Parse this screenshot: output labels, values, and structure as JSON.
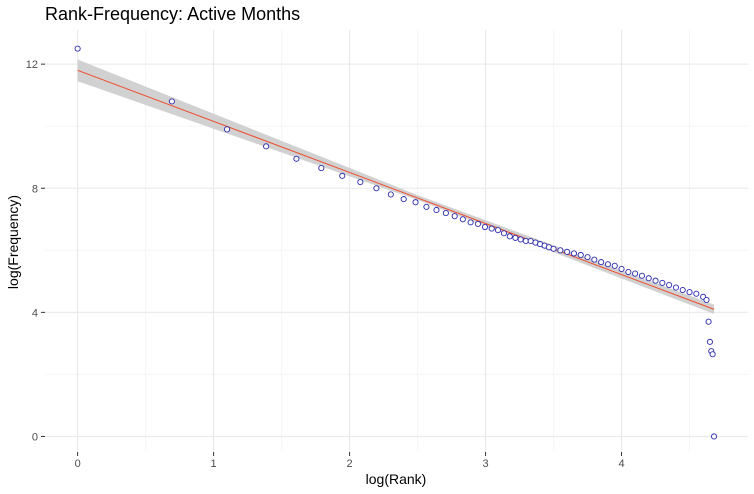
{
  "chart_data": {
    "type": "scatter",
    "title": "Rank-Frequency: Active Months",
    "xlabel": "log(Rank)",
    "ylabel": "log(Frequency)",
    "xlim": [
      -0.24,
      4.93
    ],
    "ylim": [
      -0.5,
      13.1
    ],
    "x_ticks": [
      0,
      1,
      2,
      3,
      4
    ],
    "y_ticks": [
      0,
      4,
      8,
      12
    ],
    "grid": true,
    "legend": "none",
    "colors": {
      "points": "#2b2bb0",
      "fit_line": "#ee4b2b",
      "confidence_band": "#cccccc",
      "grid_major": "#ebebeb",
      "grid_minor": "#f5f5f5"
    },
    "series": [
      {
        "kind": "points",
        "x": [
          0,
          0.693,
          1.099,
          1.386,
          1.609,
          1.792,
          1.946,
          2.079,
          2.197,
          2.303,
          2.398,
          2.485,
          2.565,
          2.639,
          2.708,
          2.773,
          2.833,
          2.89,
          2.944,
          2.996,
          3.045,
          3.091,
          3.135,
          3.178,
          3.219,
          3.258,
          3.296,
          3.332,
          3.367,
          3.401,
          3.434,
          3.466,
          3.5,
          3.55,
          3.6,
          3.65,
          3.7,
          3.75,
          3.8,
          3.85,
          3.9,
          3.95,
          4.0,
          4.05,
          4.1,
          4.15,
          4.2,
          4.25,
          4.3,
          4.35,
          4.4,
          4.45,
          4.5,
          4.55,
          4.6,
          4.625,
          4.64,
          4.65,
          4.66,
          4.67,
          4.68
        ],
        "y": [
          12.5,
          10.8,
          9.9,
          9.35,
          8.95,
          8.65,
          8.4,
          8.2,
          8.0,
          7.8,
          7.65,
          7.55,
          7.4,
          7.3,
          7.2,
          7.1,
          7.0,
          6.9,
          6.85,
          6.75,
          6.7,
          6.65,
          6.55,
          6.45,
          6.4,
          6.35,
          6.3,
          6.3,
          6.25,
          6.2,
          6.15,
          6.1,
          6.05,
          6.0,
          5.95,
          5.9,
          5.85,
          5.78,
          5.7,
          5.62,
          5.55,
          5.5,
          5.4,
          5.3,
          5.25,
          5.18,
          5.1,
          5.02,
          4.95,
          4.88,
          4.8,
          4.72,
          4.65,
          4.6,
          4.5,
          4.4,
          3.7,
          3.05,
          2.75,
          2.65,
          0.0
        ]
      }
    ],
    "fit_line": {
      "x": [
        0,
        4.68
      ],
      "y": [
        11.8,
        4.1
      ]
    },
    "confidence_band": {
      "x": [
        0,
        2.5,
        4.68
      ],
      "lower": [
        11.45,
        7.62,
        3.95
      ],
      "upper": [
        12.15,
        7.78,
        4.25
      ]
    }
  }
}
